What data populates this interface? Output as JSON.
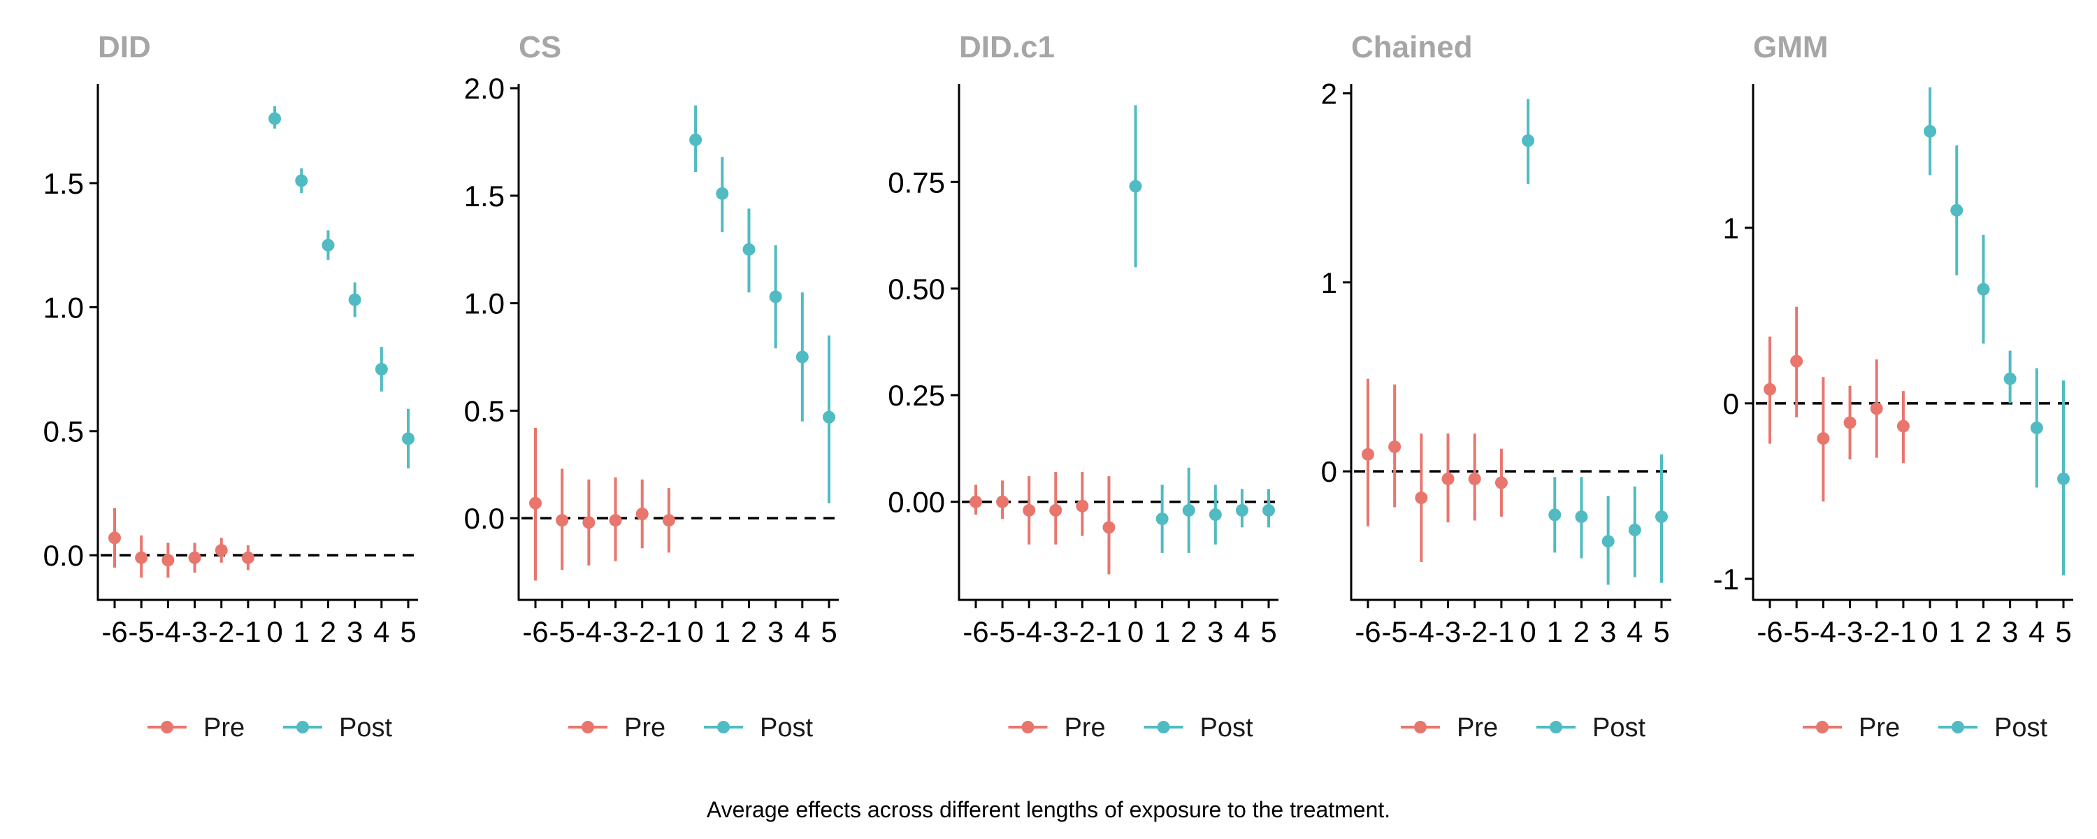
{
  "caption": "Average effects across different lengths of exposure to the treatment.",
  "colors": {
    "pre": "#E8766D",
    "post": "#50BBC2",
    "title": "#A6A6A6",
    "axis": "#000000"
  },
  "legend": {
    "pre": "Pre",
    "post": "Post"
  },
  "chart_data": [
    {
      "type": "scatter",
      "title": "DID",
      "xlabel": "",
      "ylabel": "",
      "x_ticks": [
        "-6",
        "-5",
        "-4",
        "-3",
        "-2",
        "-1",
        "0",
        "1",
        "2",
        "3",
        "4",
        "5"
      ],
      "y_ticks": [
        0,
        0.5,
        1.0,
        1.5
      ],
      "y_tick_labels": [
        "0.0",
        "0.5",
        "1.0",
        "1.5"
      ],
      "ylim": [
        -0.18,
        1.9
      ],
      "reference_line": 0,
      "legend_position": "bottom",
      "series": [
        {
          "name": "Pre",
          "x": [
            -6,
            -5,
            -4,
            -3,
            -2,
            -1
          ],
          "y": [
            0.07,
            -0.01,
            -0.02,
            -0.01,
            0.02,
            -0.01
          ],
          "lower": [
            -0.05,
            -0.09,
            -0.09,
            -0.07,
            -0.03,
            -0.06
          ],
          "upper": [
            0.19,
            0.08,
            0.05,
            0.05,
            0.07,
            0.04
          ]
        },
        {
          "name": "Post",
          "x": [
            0,
            1,
            2,
            3,
            4,
            5
          ],
          "y": [
            1.76,
            1.51,
            1.25,
            1.03,
            0.75,
            0.47
          ],
          "lower": [
            1.72,
            1.46,
            1.19,
            0.96,
            0.66,
            0.35
          ],
          "upper": [
            1.81,
            1.56,
            1.31,
            1.1,
            0.84,
            0.59
          ]
        }
      ]
    },
    {
      "type": "scatter",
      "title": "CS",
      "xlabel": "",
      "ylabel": "",
      "x_ticks": [
        "-6",
        "-5",
        "-4",
        "-3",
        "-2",
        "-1",
        "0",
        "1",
        "2",
        "3",
        "4",
        "5"
      ],
      "y_ticks": [
        0,
        0.5,
        1.0,
        1.5,
        2.0
      ],
      "y_tick_labels": [
        "0.0",
        "0.5",
        "1.0",
        "1.5",
        "2.0"
      ],
      "ylim": [
        -0.38,
        2.02
      ],
      "reference_line": 0,
      "legend_position": "bottom",
      "series": [
        {
          "name": "Pre",
          "x": [
            -6,
            -5,
            -4,
            -3,
            -2,
            -1
          ],
          "y": [
            0.07,
            -0.01,
            -0.02,
            -0.01,
            0.02,
            -0.01
          ],
          "lower": [
            -0.29,
            -0.24,
            -0.22,
            -0.2,
            -0.14,
            -0.16
          ],
          "upper": [
            0.42,
            0.23,
            0.18,
            0.19,
            0.18,
            0.14
          ]
        },
        {
          "name": "Post",
          "x": [
            0,
            1,
            2,
            3,
            4,
            5
          ],
          "y": [
            1.76,
            1.51,
            1.25,
            1.03,
            0.75,
            0.47
          ],
          "lower": [
            1.61,
            1.33,
            1.05,
            0.79,
            0.45,
            0.07
          ],
          "upper": [
            1.92,
            1.68,
            1.44,
            1.27,
            1.05,
            0.85
          ]
        }
      ]
    },
    {
      "type": "scatter",
      "title": "DID.c1",
      "xlabel": "",
      "ylabel": "",
      "x_ticks": [
        "-6",
        "-5",
        "-4",
        "-3",
        "-2",
        "-1",
        "0",
        "1",
        "2",
        "3",
        "4",
        "5"
      ],
      "y_ticks": [
        0,
        0.25,
        0.5,
        0.75
      ],
      "y_tick_labels": [
        "0.00",
        "0.25",
        "0.50",
        "0.75"
      ],
      "ylim": [
        -0.23,
        0.98
      ],
      "reference_line": 0,
      "legend_position": "bottom",
      "series": [
        {
          "name": "Pre",
          "x": [
            -6,
            -5,
            -4,
            -3,
            -2,
            -1
          ],
          "y": [
            0.0,
            0.0,
            -0.02,
            -0.02,
            -0.01,
            -0.06
          ],
          "lower": [
            -0.03,
            -0.04,
            -0.1,
            -0.1,
            -0.08,
            -0.17
          ],
          "upper": [
            0.04,
            0.05,
            0.06,
            0.07,
            0.07,
            0.06
          ]
        },
        {
          "name": "Post",
          "x": [
            0,
            1,
            2,
            3,
            4,
            5
          ],
          "y": [
            0.74,
            -0.04,
            -0.02,
            -0.03,
            -0.02,
            -0.02
          ],
          "lower": [
            0.55,
            -0.12,
            -0.12,
            -0.1,
            -0.06,
            -0.06
          ],
          "upper": [
            0.93,
            0.04,
            0.08,
            0.04,
            0.03,
            0.03
          ]
        }
      ]
    },
    {
      "type": "scatter",
      "title": "Chained",
      "xlabel": "",
      "ylabel": "",
      "x_ticks": [
        "-6",
        "-5",
        "-4",
        "-3",
        "-2",
        "-1",
        "0",
        "1",
        "2",
        "3",
        "4",
        "5"
      ],
      "y_ticks": [
        0,
        1,
        2
      ],
      "y_tick_labels": [
        "0",
        "1",
        "2"
      ],
      "ylim": [
        -0.68,
        2.05
      ],
      "reference_line": 0,
      "legend_position": "bottom",
      "series": [
        {
          "name": "Pre",
          "x": [
            -6,
            -5,
            -4,
            -3,
            -2,
            -1
          ],
          "y": [
            0.09,
            0.13,
            -0.14,
            -0.04,
            -0.04,
            -0.06
          ],
          "lower": [
            -0.29,
            -0.19,
            -0.48,
            -0.27,
            -0.26,
            -0.24
          ],
          "upper": [
            0.49,
            0.46,
            0.2,
            0.2,
            0.2,
            0.12
          ]
        },
        {
          "name": "Post",
          "x": [
            0,
            1,
            2,
            3,
            4,
            5
          ],
          "y": [
            1.75,
            -0.23,
            -0.24,
            -0.37,
            -0.31,
            -0.24
          ],
          "lower": [
            1.52,
            -0.43,
            -0.46,
            -0.6,
            -0.56,
            -0.59
          ],
          "upper": [
            1.97,
            -0.03,
            -0.03,
            -0.13,
            -0.08,
            0.09
          ]
        }
      ]
    },
    {
      "type": "scatter",
      "title": "GMM",
      "xlabel": "",
      "ylabel": "",
      "x_ticks": [
        "-6",
        "-5",
        "-4",
        "-3",
        "-2",
        "-1",
        "0",
        "1",
        "2",
        "3",
        "4",
        "5"
      ],
      "y_ticks": [
        -1,
        0,
        1
      ],
      "y_tick_labels": [
        "-1",
        "0",
        "1"
      ],
      "ylim": [
        -1.12,
        1.82
      ],
      "reference_line": 0,
      "legend_position": "bottom",
      "series": [
        {
          "name": "Pre",
          "x": [
            -6,
            -5,
            -4,
            -3,
            -2,
            -1
          ],
          "y": [
            0.08,
            0.24,
            -0.2,
            -0.11,
            -0.03,
            -0.13
          ],
          "lower": [
            -0.23,
            -0.08,
            -0.56,
            -0.32,
            -0.31,
            -0.34
          ],
          "upper": [
            0.38,
            0.55,
            0.15,
            0.1,
            0.25,
            0.07
          ]
        },
        {
          "name": "Post",
          "x": [
            0,
            1,
            2,
            3,
            4,
            5
          ],
          "y": [
            1.55,
            1.1,
            0.65,
            0.14,
            -0.14,
            -0.43
          ],
          "lower": [
            1.3,
            0.73,
            0.34,
            0.0,
            -0.48,
            -0.98
          ],
          "upper": [
            1.8,
            1.47,
            0.96,
            0.3,
            0.2,
            0.13
          ]
        }
      ]
    }
  ]
}
